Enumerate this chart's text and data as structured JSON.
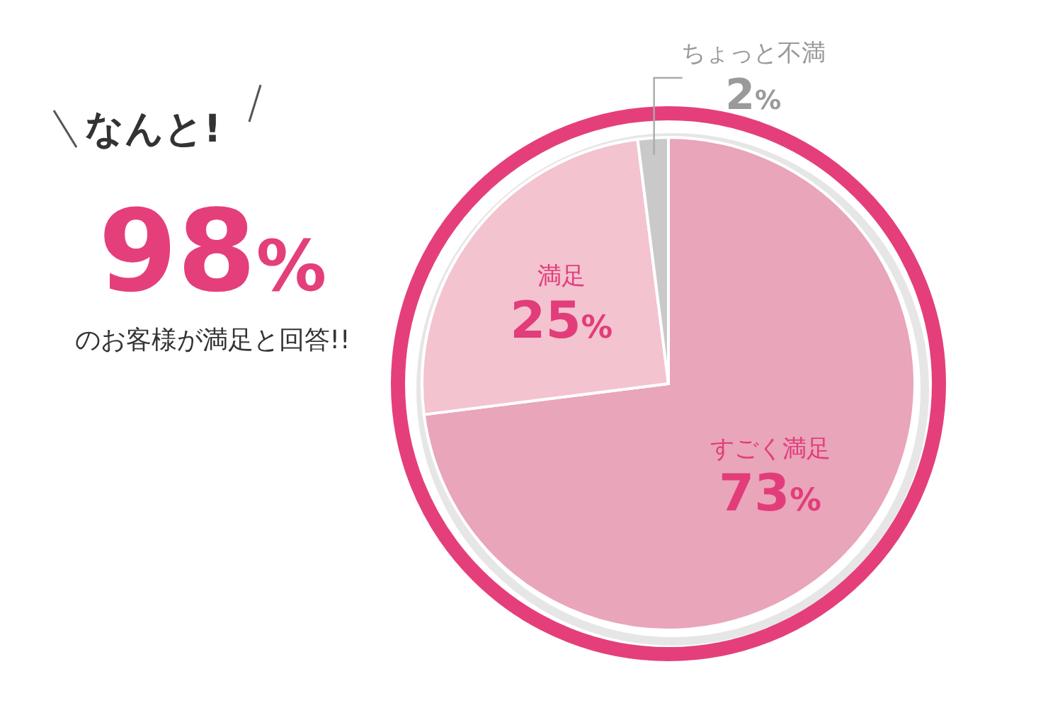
{
  "chart_data": {
    "type": "pie",
    "categories": [
      "すごく満足",
      "満足",
      "ちょっと不満"
    ],
    "values": [
      73,
      25,
      2
    ],
    "colors": [
      "#e9a5ba",
      "#f3c3d0",
      "#c9c9c9"
    ],
    "value_labels": [
      "73%",
      "25%",
      "2%"
    ],
    "annotations": [
      "なんと!",
      "98%",
      "のお客様が満足と回答!!"
    ]
  }
}
